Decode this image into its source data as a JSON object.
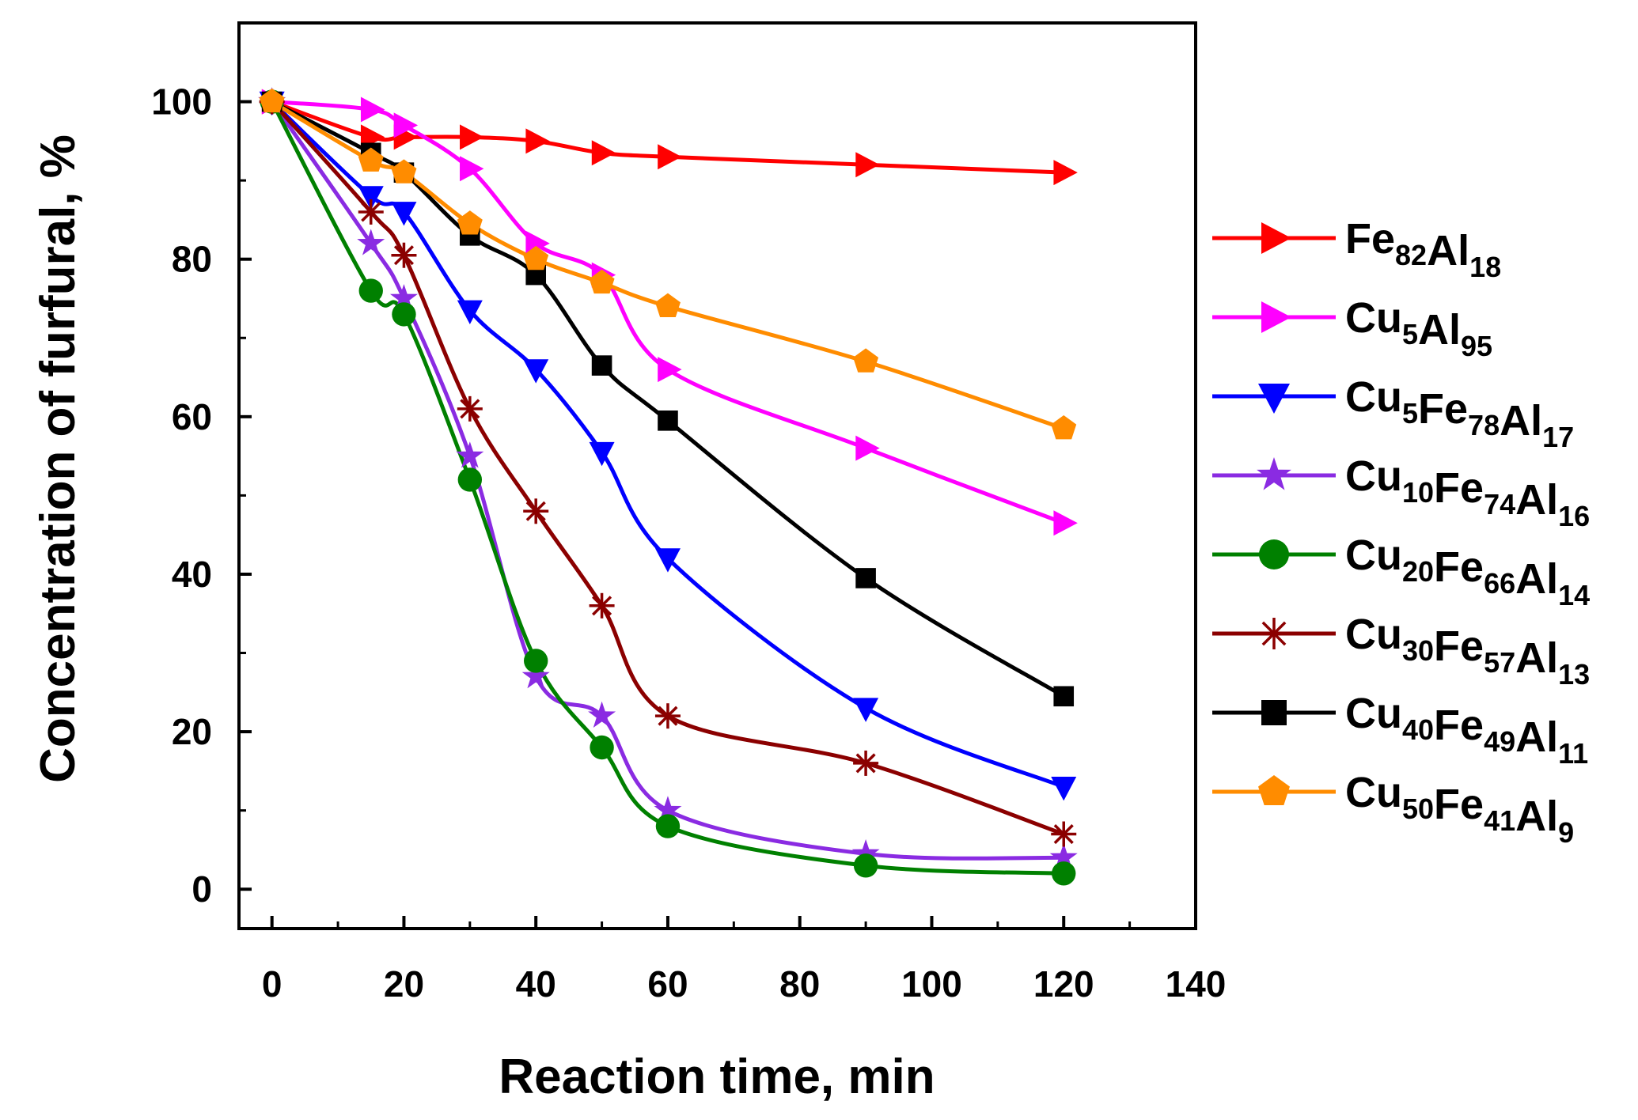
{
  "chart_data": {
    "type": "line",
    "title": "",
    "xlabel": "Reaction time, min",
    "ylabel": "Concentration of furfural, %",
    "xlim": [
      -5,
      140
    ],
    "ylim": [
      -5,
      110
    ],
    "xticks": [
      0,
      20,
      40,
      60,
      80,
      100,
      120,
      140
    ],
    "yticks": [
      0,
      20,
      40,
      60,
      80,
      100
    ],
    "x": [
      0,
      15,
      20,
      30,
      40,
      50,
      60,
      90,
      120
    ],
    "legend_position": "right",
    "series": [
      {
        "name": "Fe82Al18",
        "base": "Fe",
        "parts": [
          {
            "t": "Fe",
            "s": "82"
          },
          {
            "t": "Al",
            "s": "18"
          }
        ],
        "color": "#ff0000",
        "marker": "triangle-right",
        "values": [
          100,
          95.5,
          95.5,
          95.5,
          95,
          93.5,
          93,
          92,
          91
        ]
      },
      {
        "name": "Cu5Al95",
        "parts": [
          {
            "t": "Cu",
            "s": "5"
          },
          {
            "t": "Al",
            "s": "95"
          }
        ],
        "color": "#ff00ff",
        "marker": "triangle-right",
        "values": [
          100,
          99,
          97,
          91.5,
          82,
          78,
          66,
          56,
          46.5
        ]
      },
      {
        "name": "Cu5Fe78Al17",
        "parts": [
          {
            "t": "Cu",
            "s": "5"
          },
          {
            "t": "Fe",
            "s": "78"
          },
          {
            "t": "Al",
            "s": "17"
          }
        ],
        "color": "#0000ff",
        "marker": "triangle-down",
        "values": [
          100,
          88,
          86,
          73.5,
          66,
          55.5,
          42,
          23,
          13
        ]
      },
      {
        "name": "Cu10Fe74Al16",
        "parts": [
          {
            "t": "Cu",
            "s": "10"
          },
          {
            "t": "Fe",
            "s": "74"
          },
          {
            "t": "Al",
            "s": "16"
          }
        ],
        "color": "#8a2be2",
        "marker": "star",
        "values": [
          100,
          82,
          75,
          55,
          27,
          22,
          10,
          4.5,
          4
        ]
      },
      {
        "name": "Cu20Fe66Al14",
        "parts": [
          {
            "t": "Cu",
            "s": "20"
          },
          {
            "t": "Fe",
            "s": "66"
          },
          {
            "t": "Al",
            "s": "14"
          }
        ],
        "color": "#008000",
        "marker": "circle",
        "values": [
          100,
          76,
          73,
          52,
          29,
          18,
          8,
          3,
          2
        ]
      },
      {
        "name": "Cu30Fe57Al13",
        "parts": [
          {
            "t": "Cu",
            "s": "30"
          },
          {
            "t": "Fe",
            "s": "57"
          },
          {
            "t": "Al",
            "s": "13"
          }
        ],
        "color": "#8b0000",
        "marker": "asterisk",
        "values": [
          100,
          86,
          80.5,
          61,
          48,
          36,
          22,
          16,
          7
        ]
      },
      {
        "name": "Cu40Fe49Al11",
        "parts": [
          {
            "t": "Cu",
            "s": "40"
          },
          {
            "t": "Fe",
            "s": "49"
          },
          {
            "t": "Al",
            "s": "11"
          }
        ],
        "color": "#000000",
        "marker": "square",
        "values": [
          100,
          93.5,
          91,
          83,
          78,
          66.5,
          59.5,
          39.5,
          24.5
        ]
      },
      {
        "name": "Cu50Fe41Al9",
        "parts": [
          {
            "t": "Cu",
            "s": "50"
          },
          {
            "t": "Fe",
            "s": "41"
          },
          {
            "t": "Al",
            "s": "9"
          }
        ],
        "color": "#ff8c00",
        "marker": "pentagon",
        "values": [
          100,
          92.5,
          91,
          84.5,
          80,
          77,
          74,
          67,
          58.5
        ]
      }
    ]
  }
}
